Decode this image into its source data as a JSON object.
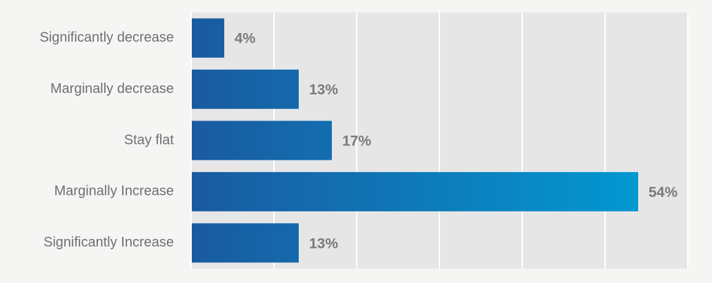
{
  "chart_data": {
    "type": "bar",
    "orientation": "horizontal",
    "categories": [
      "Significantly decrease",
      "Marginally decrease",
      "Stay flat",
      "Marginally Increase",
      "Significantly Increase"
    ],
    "values": [
      4,
      13,
      17,
      54,
      13
    ],
    "value_labels": [
      "4%",
      "13%",
      "17%",
      "54%",
      "13%"
    ],
    "title": "",
    "xlabel": "",
    "ylabel": "",
    "xlim": [
      0,
      60
    ],
    "grid": true,
    "legend": "none",
    "colors": {
      "background": "#f5f5f4",
      "plot_area": "#e6e6e6",
      "gridline": "#ffffff",
      "bar_start": "#1a5aa0",
      "bar_end": "#009fd6",
      "category_text": "#6f6f6f",
      "value_text": "#7a7a7a"
    }
  }
}
